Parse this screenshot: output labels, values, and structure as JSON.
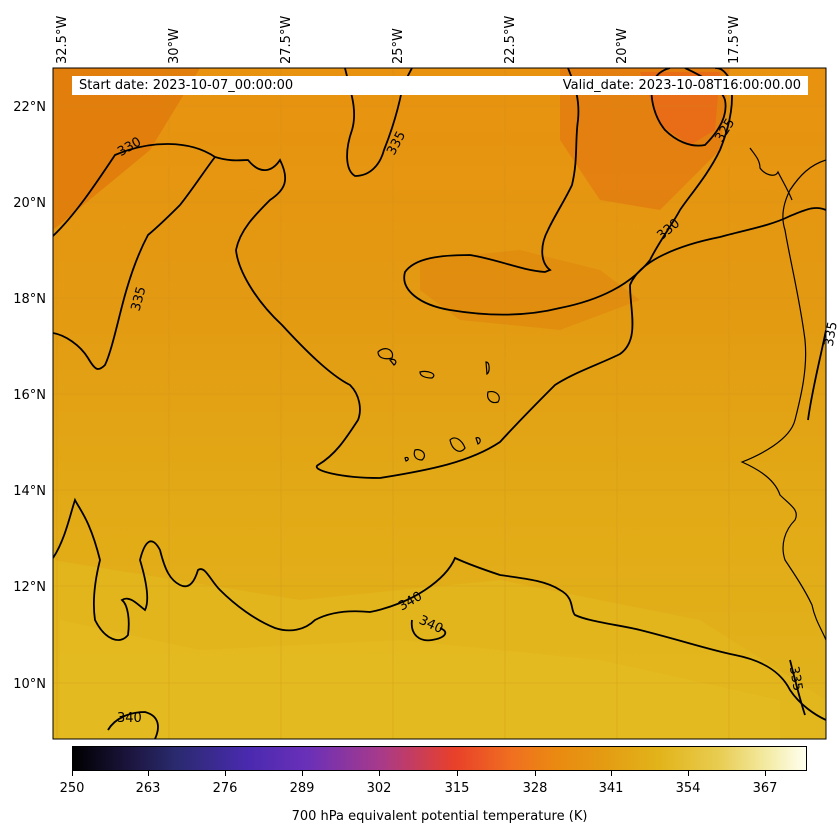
{
  "header": {
    "start_date": "Start date: 2023-10-07_00:00:00",
    "valid_date": "Valid_date: 2023-10-08T16:00:00.00"
  },
  "map": {
    "longitude_labels": [
      "32.5°W",
      "30°W",
      "27.5°W",
      "25°W",
      "22.5°W",
      "20°W",
      "17.5°W"
    ],
    "latitude_labels": [
      "22°N",
      "20°N",
      "18°N",
      "16°N",
      "14°N",
      "12°N",
      "10°N"
    ],
    "contour_labels": [
      "330",
      "335",
      "325",
      "330",
      "335",
      "335",
      "340",
      "340",
      "335",
      "340"
    ]
  },
  "colorbar": {
    "ticks": [
      "250",
      "263",
      "276",
      "289",
      "302",
      "315",
      "328",
      "341",
      "354",
      "367"
    ],
    "label": "700 hPa equivalent potential temperature (K)",
    "colormap": [
      "#000000",
      "#2a2a6e",
      "#4a2ab0",
      "#a83a8a",
      "#e8402a",
      "#f07020",
      "#e49a12",
      "#e2b41a",
      "#f4eca8",
      "#fffff0"
    ]
  }
}
